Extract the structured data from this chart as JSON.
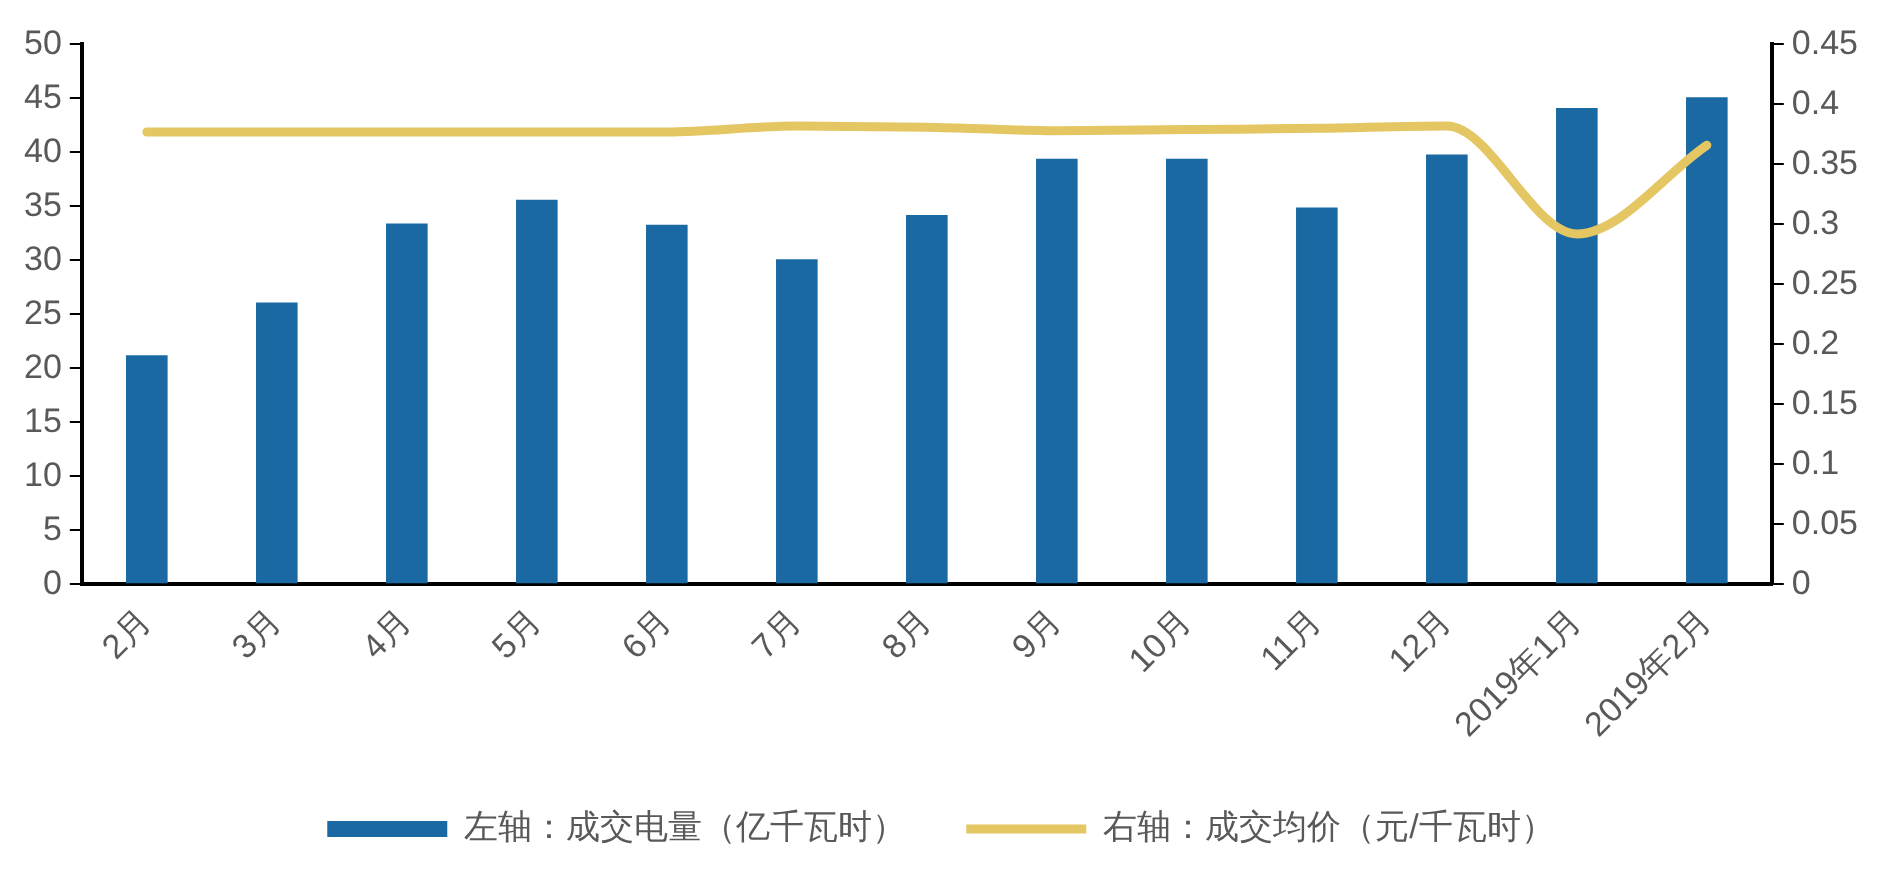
{
  "chart_data": {
    "type": "bar",
    "categories": [
      "2月",
      "3月",
      "4月",
      "5月",
      "6月",
      "7月",
      "8月",
      "9月",
      "10月",
      "11月",
      "12月",
      "2019年1月",
      "2019年2月"
    ],
    "series": [
      {
        "name": "左轴：成交电量（亿千瓦时）",
        "color": "#1b69a3",
        "values": [
          21.2,
          26.1,
          33.4,
          35.6,
          33.3,
          30.1,
          34.2,
          39.4,
          39.4,
          34.9,
          39.8,
          44.1,
          45.1
        ]
      },
      {
        "name": "右轴：成交均价（元/千瓦时）",
        "type": "line",
        "axis": "y2",
        "color": "#e4c663",
        "values": [
          0.377,
          0.377,
          0.377,
          0.377,
          0.377,
          0.382,
          0.381,
          0.378,
          0.379,
          0.38,
          0.382,
          0.292,
          0.366
        ]
      }
    ],
    "ylim": [
      0,
      50
    ],
    "yticks": [
      0,
      5,
      10,
      15,
      20,
      25,
      30,
      35,
      40,
      45,
      50
    ],
    "y2lim": [
      0,
      0.45
    ],
    "y2ticks": [
      0,
      0.05,
      0.1,
      0.15,
      0.2,
      0.25,
      0.3,
      0.35,
      0.4,
      0.45
    ],
    "grid": false,
    "legend": "bottom",
    "marker": "none"
  }
}
